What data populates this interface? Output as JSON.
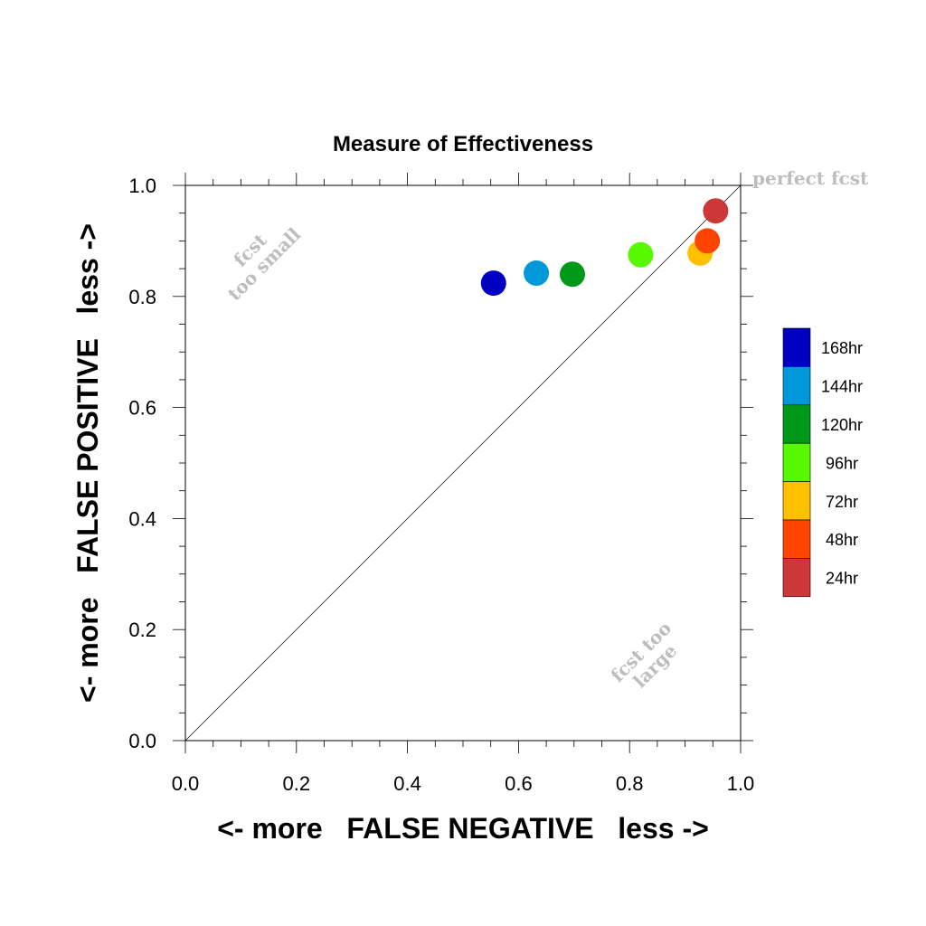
{
  "chart_data": {
    "type": "scatter",
    "title": "Measure of Effectiveness",
    "xlabel": "<- more   FALSE NEGATIVE   less ->",
    "ylabel": "<- more   FALSE POSITIVE   less ->",
    "xlim": [
      0.0,
      1.0
    ],
    "ylim": [
      0.0,
      1.0
    ],
    "xticks": [
      "0.0",
      "0.2",
      "0.4",
      "0.6",
      "0.8",
      "1.0"
    ],
    "yticks": [
      "0.0",
      "0.2",
      "0.4",
      "0.6",
      "0.8",
      "1.0"
    ],
    "grid": false,
    "diagonal_reference_line": true,
    "legend_position": "right",
    "annotations": {
      "perfect": "perfect fcst",
      "too_small_1": "fcst",
      "too_small_2": "too small",
      "too_large_1": "fcst too",
      "too_large_2": "large"
    },
    "series": [
      {
        "name": "168hr",
        "color": "#0000c0",
        "x": 0.555,
        "y": 0.824
      },
      {
        "name": "144hr",
        "color": "#0098d8",
        "x": 0.632,
        "y": 0.842
      },
      {
        "name": "120hr",
        "color": "#009818",
        "x": 0.697,
        "y": 0.84
      },
      {
        "name": "96hr",
        "color": "#58f800",
        "x": 0.82,
        "y": 0.875
      },
      {
        "name": "72hr",
        "color": "#ffc000",
        "x": 0.927,
        "y": 0.878
      },
      {
        "name": "48hr",
        "color": "#ff4400",
        "x": 0.94,
        "y": 0.9
      },
      {
        "name": "24hr",
        "color": "#cc3838",
        "x": 0.955,
        "y": 0.954
      }
    ]
  }
}
